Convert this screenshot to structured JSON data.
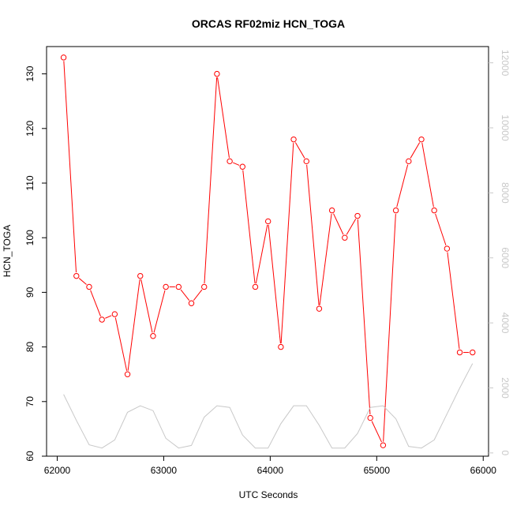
{
  "chart_data": {
    "type": "line",
    "title": "ORCAS RF02miz HCN_TOGA",
    "xlabel": "UTC Seconds",
    "ylabel": "HCN_TOGA",
    "xlim": [
      61900,
      66050
    ],
    "ylim": [
      60,
      135
    ],
    "x_ticks": [
      62000,
      63000,
      64000,
      65000,
      66000
    ],
    "y_ticks": [
      60,
      70,
      80,
      90,
      100,
      110,
      120,
      130
    ],
    "y2lim": [
      -100,
      12500
    ],
    "y2_ticks": [
      0,
      2000,
      4000,
      6000,
      8000,
      10000,
      12000
    ],
    "colors": {
      "primary": "#ff0000",
      "secondary": "#c8c8c8"
    },
    "series": [
      {
        "axis": "left",
        "style": "points-and-lines",
        "x": [
          62060,
          62180,
          62300,
          62420,
          62540,
          62660,
          62780,
          62900,
          63020,
          63140,
          63260,
          63380,
          63500,
          63620,
          63740,
          63860,
          63980,
          64100,
          64220,
          64340,
          64460,
          64580,
          64700,
          64820,
          64940,
          65060,
          65180,
          65300,
          65420,
          65540,
          65660,
          65780,
          65900
        ],
        "values": [
          133,
          93,
          91,
          85,
          86,
          75,
          93,
          82,
          91,
          91,
          88,
          91,
          130,
          114,
          113,
          91,
          103,
          80,
          118,
          114,
          87,
          105,
          100,
          104,
          67,
          62,
          105,
          114,
          118,
          105,
          98,
          79,
          79
        ]
      },
      {
        "axis": "right",
        "style": "line",
        "x": [
          62060,
          62180,
          62300,
          62420,
          62540,
          62660,
          62780,
          62900,
          63020,
          63140,
          63260,
          63380,
          63500,
          63620,
          63740,
          63860,
          63980,
          64100,
          64220,
          64340,
          64460,
          64580,
          64700,
          64820,
          64940,
          65060,
          65180,
          65300,
          65420,
          65540,
          65660,
          65780,
          65900
        ],
        "values": [
          1800,
          1000,
          250,
          150,
          400,
          1250,
          1450,
          1300,
          450,
          150,
          230,
          1100,
          1450,
          1400,
          550,
          150,
          150,
          900,
          1450,
          1450,
          850,
          150,
          150,
          600,
          1400,
          1450,
          1050,
          200,
          150,
          400,
          1200,
          2000,
          2750
        ]
      }
    ]
  }
}
